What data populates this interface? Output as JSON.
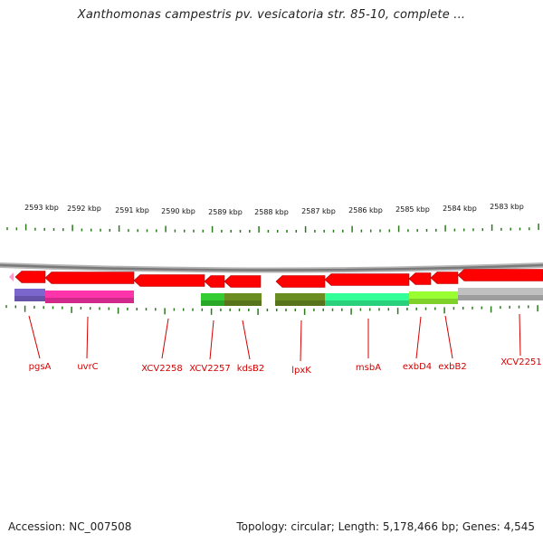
{
  "title": "Xanthomonas campestris pv. vesicatoria str. 85-10, complete ...",
  "footer": {
    "accession": "Accession: NC_007508",
    "summary": "Topology: circular; Length: 5,178,466 bp; Genes: 4,545"
  },
  "colors": {
    "gene_arrow": "#ff0000",
    "gene_label": "#d40000",
    "backbone": "#8a8a8a",
    "tick": "#2a7a1c"
  },
  "ruler_labels": [
    "2593 kbp",
    "2592 kbp",
    "2591 kbp",
    "2590 kbp",
    "2589 kbp",
    "2588 kbp",
    "2587 kbp",
    "2586 kbp",
    "2585 kbp",
    "2584 kbp",
    "2583 kbp"
  ],
  "gene_labels": [
    "pgsA",
    "uvrC",
    "XCV2258",
    "XCV2257",
    "kdsB2",
    "lpxK",
    "msbA",
    "exbD4",
    "exbB2",
    "XCV2251"
  ],
  "feature_colors": [
    "#7a66cc",
    "#ff33aa",
    "#33cc33",
    "#6b8e23",
    "#6b8e23",
    "#33ff99",
    "#99ff33",
    "#c0c0c0"
  ]
}
